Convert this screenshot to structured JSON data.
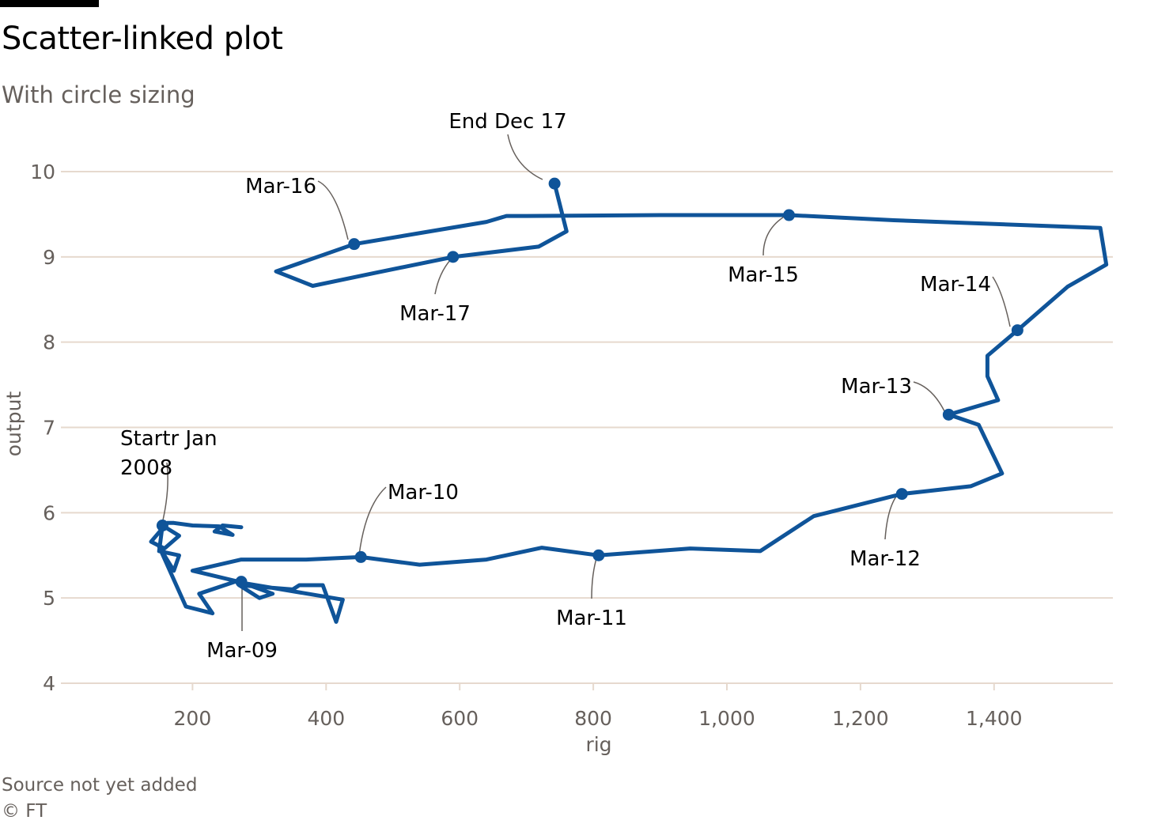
{
  "page": {
    "title": "Scatter-linked plot",
    "subtitle": "With circle sizing",
    "source": "Source not yet added",
    "credit": "© FT"
  },
  "colors": {
    "series": "#0f5499",
    "grid": "#e6d9ce",
    "tick_text": "#66605c",
    "leader": "#66605c"
  },
  "chart_data": {
    "type": "line",
    "xlabel": "rig",
    "ylabel": "output",
    "xlim": [
      0,
      1575
    ],
    "ylim": [
      4,
      10.5
    ],
    "xticks": [
      200,
      400,
      600,
      800,
      1000,
      1200,
      1400
    ],
    "xtick_labels": [
      "200",
      "400",
      "600",
      "800",
      "1,000",
      "1,200",
      "1,400"
    ],
    "yticks": [
      4,
      5,
      6,
      7,
      8,
      9,
      10
    ],
    "ytick_labels": [
      "4",
      "5",
      "6",
      "7",
      "8",
      "9",
      "10"
    ],
    "grid": true,
    "series": [
      {
        "points": [
          [
            273,
            5.83
          ],
          [
            245,
            5.85
          ],
          [
            233,
            5.78
          ],
          [
            260,
            5.74
          ],
          [
            240,
            5.84
          ],
          [
            200,
            5.85
          ],
          [
            172,
            5.88
          ],
          [
            162,
            5.88
          ],
          [
            138,
            5.66
          ],
          [
            158,
            5.58
          ],
          [
            180,
            5.73
          ],
          [
            155,
            5.85
          ],
          [
            150,
            5.55
          ],
          [
            180,
            5.5
          ],
          [
            172,
            5.32
          ],
          [
            150,
            5.6
          ],
          [
            190,
            4.9
          ],
          [
            230,
            4.82
          ],
          [
            210,
            5.05
          ],
          [
            267,
            5.2
          ],
          [
            320,
            5.05
          ],
          [
            300,
            5.0
          ],
          [
            270,
            5.15
          ],
          [
            350,
            5.1
          ],
          [
            360,
            5.15
          ],
          [
            395,
            5.15
          ],
          [
            415,
            4.72
          ],
          [
            425,
            4.98
          ],
          [
            280,
            5.17
          ],
          [
            200,
            5.32
          ],
          [
            273,
            5.45
          ],
          [
            370,
            5.45
          ],
          [
            452,
            5.48
          ],
          [
            540,
            5.39
          ],
          [
            640,
            5.45
          ],
          [
            723,
            5.59
          ],
          [
            808,
            5.5
          ],
          [
            945,
            5.58
          ],
          [
            1050,
            5.55
          ],
          [
            1130,
            5.96
          ],
          [
            1262,
            6.22
          ],
          [
            1365,
            6.31
          ],
          [
            1412,
            6.46
          ],
          [
            1377,
            7.03
          ],
          [
            1332,
            7.15
          ],
          [
            1406,
            7.32
          ],
          [
            1390,
            7.6
          ],
          [
            1390,
            7.84
          ],
          [
            1435,
            8.14
          ],
          [
            1510,
            8.65
          ],
          [
            1568,
            8.91
          ],
          [
            1559,
            9.34
          ],
          [
            1250,
            9.43
          ],
          [
            1093,
            9.49
          ],
          [
            900,
            9.49
          ],
          [
            700,
            9.48
          ],
          [
            670,
            9.48
          ],
          [
            640,
            9.41
          ],
          [
            442,
            9.15
          ],
          [
            325,
            8.83
          ],
          [
            380,
            8.66
          ],
          [
            472,
            8.81
          ],
          [
            590,
            9.0
          ],
          [
            718,
            9.12
          ],
          [
            760,
            9.3
          ],
          [
            742,
            9.86
          ]
        ]
      }
    ],
    "markers": [
      {
        "label": "Startr Jan 2008",
        "x": 155,
        "y": 5.85
      },
      {
        "label": "Mar-09",
        "x": 273,
        "y": 5.19
      },
      {
        "label": "Mar-10",
        "x": 452,
        "y": 5.48
      },
      {
        "label": "Mar-11",
        "x": 808,
        "y": 5.5
      },
      {
        "label": "Mar-12",
        "x": 1262,
        "y": 6.22
      },
      {
        "label": "Mar-13",
        "x": 1332,
        "y": 7.15
      },
      {
        "label": "Mar-14",
        "x": 1435,
        "y": 8.14
      },
      {
        "label": "Mar-15",
        "x": 1093,
        "y": 9.49
      },
      {
        "label": "Mar-16",
        "x": 442,
        "y": 9.15
      },
      {
        "label": "Mar-17",
        "x": 590,
        "y": 9.0
      },
      {
        "label": "End Dec 17",
        "x": 742,
        "y": 9.86
      }
    ]
  }
}
